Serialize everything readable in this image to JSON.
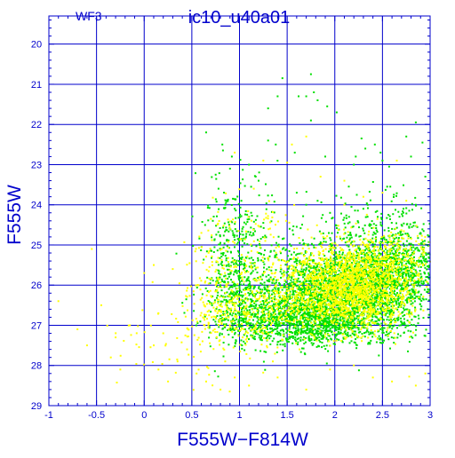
{
  "colors": {
    "axis": "#0000cc",
    "grid": "#0000cc",
    "series_green": "#00e000",
    "series_yellow": "#ffff00"
  },
  "chart_data": {
    "type": "scatter",
    "title": "ic10_u40a01",
    "chip_label": "WF3",
    "xlabel": "F555W−F814W",
    "ylabel": "F555W",
    "xlim": [
      -1,
      3
    ],
    "ylim": [
      29,
      19.3
    ],
    "y_inverted": true,
    "grid": true,
    "x_ticks": [
      -1,
      -0.5,
      0,
      0.5,
      1,
      1.5,
      2,
      2.5,
      3
    ],
    "x_tick_labels": [
      "-1",
      "-0.5",
      "0",
      "0.5",
      "1",
      "1.5",
      "2",
      "2.5",
      "3"
    ],
    "y_ticks": [
      20,
      21,
      22,
      23,
      24,
      25,
      26,
      27,
      28,
      29
    ],
    "y_tick_labels": [
      "20",
      "21",
      "22",
      "23",
      "24",
      "25",
      "26",
      "27",
      "28",
      "29"
    ],
    "series": [
      {
        "color": "#00e000",
        "points": [
          [
            1.45,
            20.85
          ],
          [
            1.75,
            20.75
          ],
          [
            1.62,
            21.3
          ],
          [
            1.78,
            21.2
          ],
          [
            1.82,
            21.4
          ],
          [
            1.7,
            21.3
          ],
          [
            1.3,
            21.6
          ],
          [
            1.92,
            21.55
          ],
          [
            2.02,
            21.7
          ],
          [
            1.75,
            21.9
          ],
          [
            2.85,
            21.95
          ],
          [
            2.42,
            22.5
          ],
          [
            1.4,
            21.3
          ],
          [
            0.65,
            22.2
          ],
          [
            0.82,
            22.5
          ],
          [
            0.92,
            22.8
          ],
          [
            0.9,
            23.1
          ],
          [
            1.1,
            23.0
          ],
          [
            1.17,
            23.3
          ],
          [
            1.2,
            23.4
          ],
          [
            1.3,
            22.4
          ],
          [
            1.38,
            22.5
          ],
          [
            1.58,
            22.7
          ],
          [
            2.28,
            22.35
          ],
          [
            2.32,
            22.6
          ],
          [
            2.22,
            22.8
          ],
          [
            2.48,
            22.7
          ],
          [
            2.5,
            22.9
          ],
          [
            2.57,
            23.05
          ],
          [
            2.75,
            22.3
          ],
          [
            2.8,
            22.8
          ],
          [
            2.92,
            22.45
          ],
          [
            2.95,
            23.3
          ],
          [
            2.55,
            23.55
          ],
          [
            2.62,
            23.75
          ],
          [
            2.72,
            24.1
          ],
          [
            2.85,
            24.0
          ],
          [
            0.75,
            23.25
          ],
          [
            0.78,
            23.6
          ],
          [
            0.72,
            24.4
          ],
          [
            0.85,
            24.0
          ],
          [
            0.95,
            24.1
          ],
          [
            1.02,
            23.9
          ],
          [
            1.1,
            24.3
          ],
          [
            1.15,
            24.6
          ],
          [
            1.25,
            24.45
          ],
          [
            1.6,
            23.7
          ],
          [
            1.7,
            24.0
          ],
          [
            1.82,
            23.9
          ],
          [
            1.95,
            24.2
          ],
          [
            2.15,
            24.3
          ],
          [
            2.3,
            24.1
          ],
          [
            2.38,
            24.5
          ],
          [
            2.45,
            24.3
          ],
          [
            2.6,
            24.6
          ],
          [
            2.7,
            24.5
          ],
          [
            2.9,
            24.7
          ],
          [
            2.98,
            25.0
          ],
          [
            2.2,
            23.0
          ],
          [
            1.9,
            22.8
          ]
        ]
      },
      {
        "color": "#ffff00",
        "points": [
          [
            -0.9,
            26.4
          ],
          [
            -0.7,
            27.1
          ],
          [
            -0.6,
            27.5
          ],
          [
            -0.55,
            25.1
          ],
          [
            -0.45,
            26.5
          ],
          [
            -0.35,
            27.8
          ],
          [
            -0.25,
            28.1
          ],
          [
            -0.3,
            27.3
          ],
          [
            0.1,
            25.5
          ],
          [
            0.15,
            26.7
          ],
          [
            0.2,
            27.2
          ],
          [
            0.1,
            27.5
          ],
          [
            0.15,
            28.1
          ],
          [
            0.25,
            28.4
          ],
          [
            0.35,
            27.9
          ],
          [
            0.3,
            25.6
          ],
          [
            0.0,
            25.7
          ],
          [
            -0.15,
            27.0
          ],
          [
            0.45,
            27.6
          ],
          [
            0.55,
            28.2
          ],
          [
            0.65,
            28.4
          ],
          [
            0.8,
            28.6
          ],
          [
            0.95,
            28.3
          ],
          [
            1.1,
            28.5
          ],
          [
            0.85,
            27.9
          ],
          [
            0.95,
            22.7
          ],
          [
            1.15,
            23.6
          ],
          [
            1.25,
            22.9
          ],
          [
            1.5,
            22.95
          ],
          [
            1.55,
            22.5
          ],
          [
            1.7,
            22.3
          ],
          [
            1.85,
            23.3
          ],
          [
            2.1,
            23.4
          ],
          [
            2.3,
            23.8
          ],
          [
            2.5,
            23.7
          ],
          [
            2.65,
            22.9
          ],
          [
            2.75,
            23.9
          ],
          [
            0.6,
            24.7
          ],
          [
            0.7,
            24.35
          ],
          [
            0.9,
            24.6
          ],
          [
            1.4,
            28.3
          ],
          [
            1.7,
            28.6
          ],
          [
            1.95,
            28.1
          ],
          [
            2.2,
            28.0
          ],
          [
            2.4,
            28.3
          ],
          [
            2.6,
            28.4
          ],
          [
            2.85,
            28.5
          ],
          [
            2.95,
            28.2
          ],
          [
            2.1,
            24.0
          ],
          [
            1.35,
            27.9
          ]
        ]
      }
    ],
    "clusters": [
      {
        "color": "#00e000",
        "n": 2600,
        "cx": 2.1,
        "cy": 26.15,
        "sx": 0.42,
        "sy": 0.55
      },
      {
        "color": "#00e000",
        "n": 650,
        "cx": 1.4,
        "cy": 26.75,
        "sx": 0.35,
        "sy": 0.35
      },
      {
        "color": "#00e000",
        "n": 550,
        "cx": 2.65,
        "cy": 25.45,
        "sx": 0.25,
        "sy": 0.4
      },
      {
        "color": "#00e000",
        "n": 320,
        "cx": 0.95,
        "cy": 26.0,
        "sx": 0.14,
        "sy": 0.75
      },
      {
        "color": "#00e000",
        "n": 450,
        "cx": 1.9,
        "cy": 27.05,
        "sx": 0.45,
        "sy": 0.22
      },
      {
        "color": "#00e000",
        "n": 170,
        "cx": 1.0,
        "cy": 24.6,
        "sx": 0.22,
        "sy": 0.7
      },
      {
        "color": "#00e000",
        "n": 150,
        "cx": 2.45,
        "cy": 24.45,
        "sx": 0.35,
        "sy": 0.45
      },
      {
        "color": "#ffff00",
        "n": 1900,
        "cx": 2.15,
        "cy": 26.05,
        "sx": 0.33,
        "sy": 0.52
      },
      {
        "color": "#ffff00",
        "n": 320,
        "cx": 1.25,
        "cy": 26.6,
        "sx": 0.35,
        "sy": 0.45
      },
      {
        "color": "#ffff00",
        "n": 220,
        "cx": 2.6,
        "cy": 25.3,
        "sx": 0.25,
        "sy": 0.35
      },
      {
        "color": "#ffff00",
        "n": 130,
        "cx": 0.75,
        "cy": 26.2,
        "sx": 0.15,
        "sy": 0.8
      },
      {
        "color": "#ffff00",
        "n": 110,
        "cx": 1.1,
        "cy": 25.0,
        "sx": 0.3,
        "sy": 0.6
      },
      {
        "color": "#ffff00",
        "n": 90,
        "cx": 0.6,
        "cy": 27.3,
        "sx": 0.45,
        "sy": 0.6
      }
    ]
  }
}
